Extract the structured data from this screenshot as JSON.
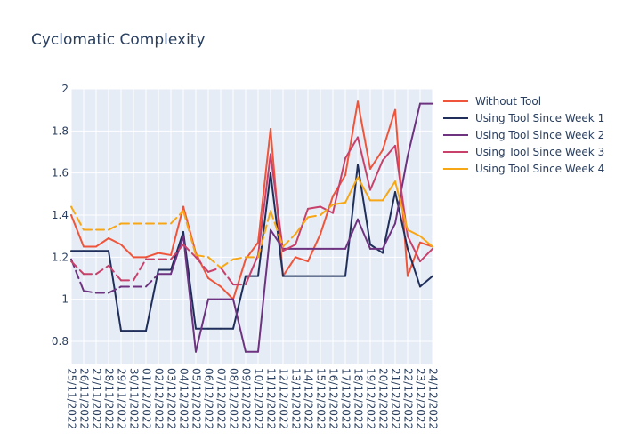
{
  "chart_data": {
    "type": "line",
    "title": "Cyclomatic Complexity",
    "xlabel": "",
    "ylabel": "",
    "ylim": [
      0.69,
      2.0
    ],
    "yticks": [
      0.8,
      1,
      1.2,
      1.4,
      1.6,
      1.8,
      2
    ],
    "ytick_labels": [
      "0.8",
      "1",
      "1.2",
      "1.4",
      "1.6",
      "1.8",
      "2"
    ],
    "grid": true,
    "legend_position": "right",
    "plot_background": "#e5ecf6",
    "x": [
      "25/11/2022",
      "26/11/2022",
      "27/11/2022",
      "28/11/2022",
      "29/11/2022",
      "30/11/2022",
      "01/12/2022",
      "02/12/2022",
      "03/12/2022",
      "04/12/2022",
      "05/12/2022",
      "06/12/2022",
      "07/12/2022",
      "08/12/2022",
      "09/12/2022",
      "10/12/2022",
      "11/12/2022",
      "12/12/2022",
      "13/12/2022",
      "14/12/2022",
      "15/12/2022",
      "16/12/2022",
      "17/12/2022",
      "18/12/2022",
      "19/12/2022",
      "20/12/2022",
      "21/12/2022",
      "22/12/2022",
      "23/12/2022",
      "24/12/2022"
    ],
    "series": [
      {
        "name": "Without Tool",
        "color": "#ef553b",
        "values": [
          1.4,
          1.25,
          1.25,
          1.29,
          1.26,
          1.2,
          1.2,
          1.22,
          1.21,
          1.44,
          1.22,
          1.1,
          1.06,
          1.0,
          1.19,
          1.27,
          1.81,
          1.11,
          1.2,
          1.18,
          1.31,
          1.49,
          1.59,
          1.94,
          1.62,
          1.71,
          1.9,
          1.11,
          1.27,
          1.25
        ]
      },
      {
        "name": "Using Tool Since Week 1",
        "color": "#1f2e5a",
        "values": [
          1.23,
          1.23,
          1.23,
          1.23,
          0.85,
          0.85,
          0.85,
          1.14,
          1.14,
          1.32,
          0.86,
          0.86,
          0.86,
          0.86,
          1.11,
          1.11,
          1.6,
          1.11,
          1.11,
          1.11,
          1.11,
          1.11,
          1.11,
          1.64,
          1.26,
          1.22,
          1.51,
          1.24,
          1.06,
          1.11
        ],
        "dashed_from": 0,
        "dashed_to": 0
      },
      {
        "name": "Using Tool Since Week 2",
        "color": "#6e3380",
        "values": [
          1.19,
          1.04,
          1.03,
          1.03,
          1.06,
          1.06,
          1.06,
          1.12,
          1.12,
          1.3,
          0.75,
          1.0,
          1.0,
          1.0,
          0.75,
          0.75,
          1.33,
          1.24,
          1.24,
          1.24,
          1.24,
          1.24,
          1.24,
          1.38,
          1.24,
          1.24,
          1.36,
          1.68,
          1.93,
          1.93
        ],
        "dashed_from": 0,
        "dashed_to": 7
      },
      {
        "name": "Using Tool Since Week 3",
        "color": "#c8416b",
        "values": [
          1.18,
          1.12,
          1.12,
          1.16,
          1.09,
          1.09,
          1.19,
          1.19,
          1.19,
          1.26,
          1.2,
          1.13,
          1.15,
          1.07,
          1.07,
          1.21,
          1.69,
          1.23,
          1.26,
          1.43,
          1.44,
          1.41,
          1.67,
          1.77,
          1.52,
          1.66,
          1.73,
          1.3,
          1.18,
          1.24
        ],
        "dashed_from": 0,
        "dashed_to": 14
      },
      {
        "name": "Using Tool Since Week 4",
        "color": "#f7a715",
        "values": [
          1.44,
          1.33,
          1.33,
          1.33,
          1.36,
          1.36,
          1.36,
          1.36,
          1.36,
          1.42,
          1.21,
          1.2,
          1.15,
          1.19,
          1.2,
          1.2,
          1.42,
          1.25,
          1.31,
          1.39,
          1.4,
          1.45,
          1.46,
          1.58,
          1.47,
          1.47,
          1.56,
          1.33,
          1.3,
          1.25
        ],
        "dashed_from": 0,
        "dashed_to": 21
      }
    ]
  }
}
